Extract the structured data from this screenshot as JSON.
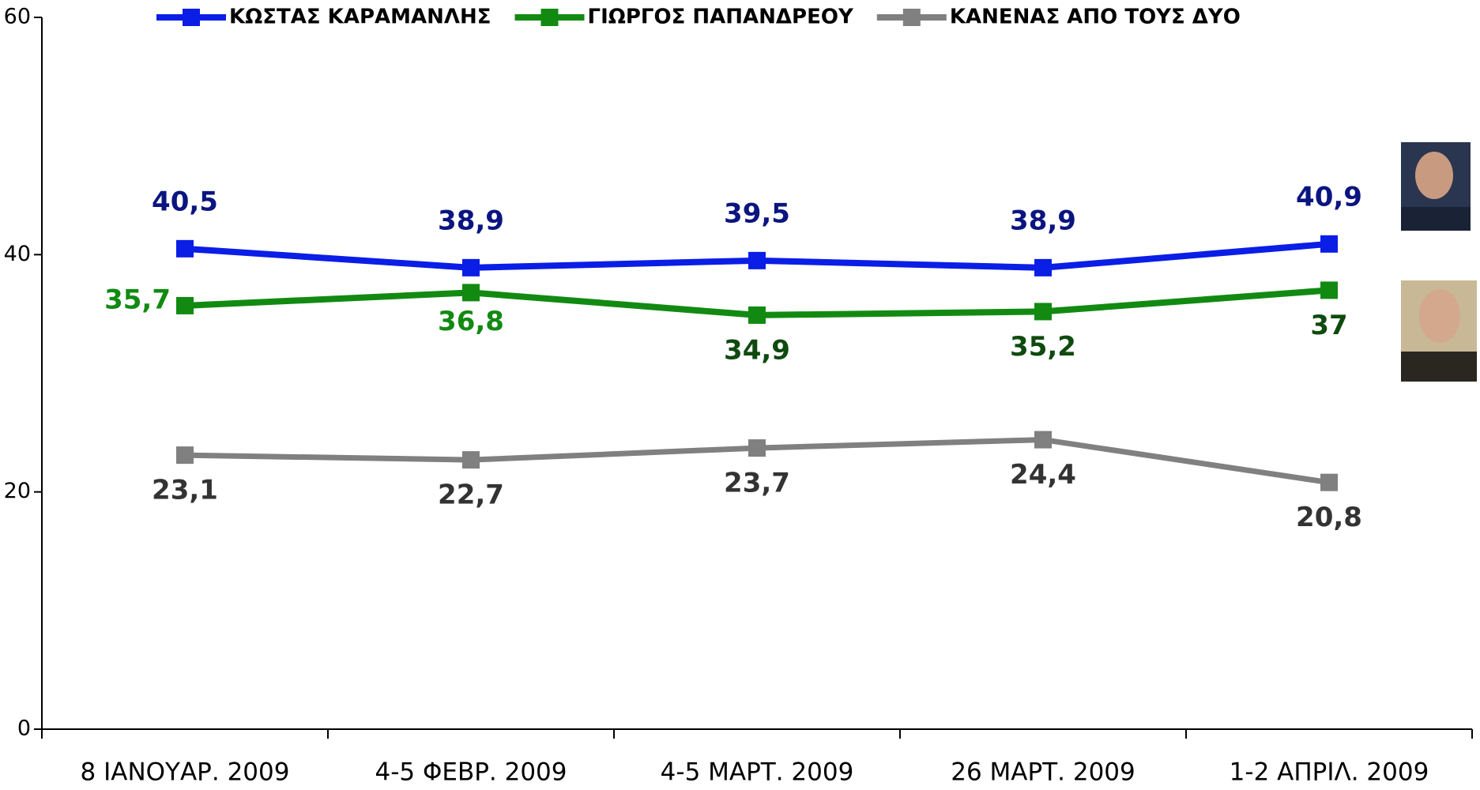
{
  "chart_data": {
    "type": "line",
    "categories": [
      "8 ΙΑΝΟΥΑΡ. 2009",
      "4-5 ΦΕΒΡ. 2009",
      "4-5 ΜΑΡΤ. 2009",
      "26 ΜΑΡΤ. 2009",
      "1-2 ΑΠΡΙΛ. 2009"
    ],
    "series": [
      {
        "name": "ΚΩΣΤΑΣ ΚΑΡΑΜΑΝΛΗΣ",
        "color": "#0a1ee6",
        "label_color": "#0b1580",
        "values": [
          40.5,
          38.9,
          39.5,
          38.9,
          40.9
        ],
        "value_labels": [
          "40,5",
          "38,9",
          "39,5",
          "38,9",
          "40,9"
        ]
      },
      {
        "name": "ΓΙΩΡΓΟΣ ΠΑΠΑΝΔΡΕΟΥ",
        "color": "#128a12",
        "label_color": "#0f4a0f",
        "values": [
          35.7,
          36.8,
          34.9,
          35.2,
          37
        ],
        "value_labels": [
          "35,7",
          "36,8",
          "34,9",
          "35,2",
          "37"
        ]
      },
      {
        "name": "ΚΑΝΕΝΑΣ ΑΠΟ ΤΟΥΣ ΔΥΟ",
        "color": "#808080",
        "label_color": "#333333",
        "values": [
          23.1,
          22.7,
          23.7,
          24.4,
          20.8
        ],
        "value_labels": [
          "23,1",
          "22,7",
          "23,7",
          "24,4",
          "20,8"
        ]
      }
    ],
    "ylim": [
      0,
      60
    ],
    "yticks": [
      0,
      20,
      40,
      60
    ],
    "legend": "top"
  }
}
